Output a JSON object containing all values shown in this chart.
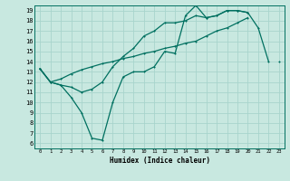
{
  "xlabel": "Humidex (Indice chaleur)",
  "bg_color": "#c8e8e0",
  "grid_color": "#a8d4cc",
  "line_color": "#007060",
  "xlim": [
    -0.5,
    23.5
  ],
  "ylim": [
    5.5,
    19.5
  ],
  "yticks": [
    6,
    7,
    8,
    9,
    10,
    11,
    12,
    13,
    14,
    15,
    16,
    17,
    18,
    19
  ],
  "xticks": [
    0,
    1,
    2,
    3,
    4,
    5,
    6,
    7,
    8,
    9,
    10,
    11,
    12,
    13,
    14,
    15,
    16,
    17,
    18,
    19,
    20,
    21,
    22,
    23
  ],
  "line1_y": [
    13.3,
    12.0,
    11.7,
    10.5,
    9.0,
    6.5,
    6.3,
    10.0,
    12.5,
    13.0,
    13.0,
    13.5,
    15.0,
    14.8,
    18.5,
    19.5,
    18.3,
    18.5,
    19.0,
    19.0,
    18.8,
    17.3,
    14.0,
    null
  ],
  "line2_y": [
    13.3,
    12.0,
    11.7,
    11.5,
    11.0,
    11.3,
    12.0,
    13.5,
    14.5,
    15.3,
    16.5,
    17.0,
    17.8,
    17.8,
    18.0,
    18.5,
    18.3,
    18.5,
    19.0,
    19.0,
    18.8,
    null,
    null,
    null
  ],
  "line3_y": [
    13.3,
    12.0,
    12.3,
    12.8,
    13.2,
    13.5,
    13.8,
    14.0,
    14.3,
    14.5,
    14.8,
    15.0,
    15.3,
    15.5,
    15.8,
    16.0,
    16.5,
    17.0,
    17.3,
    17.8,
    18.3,
    null,
    null,
    14.0
  ]
}
